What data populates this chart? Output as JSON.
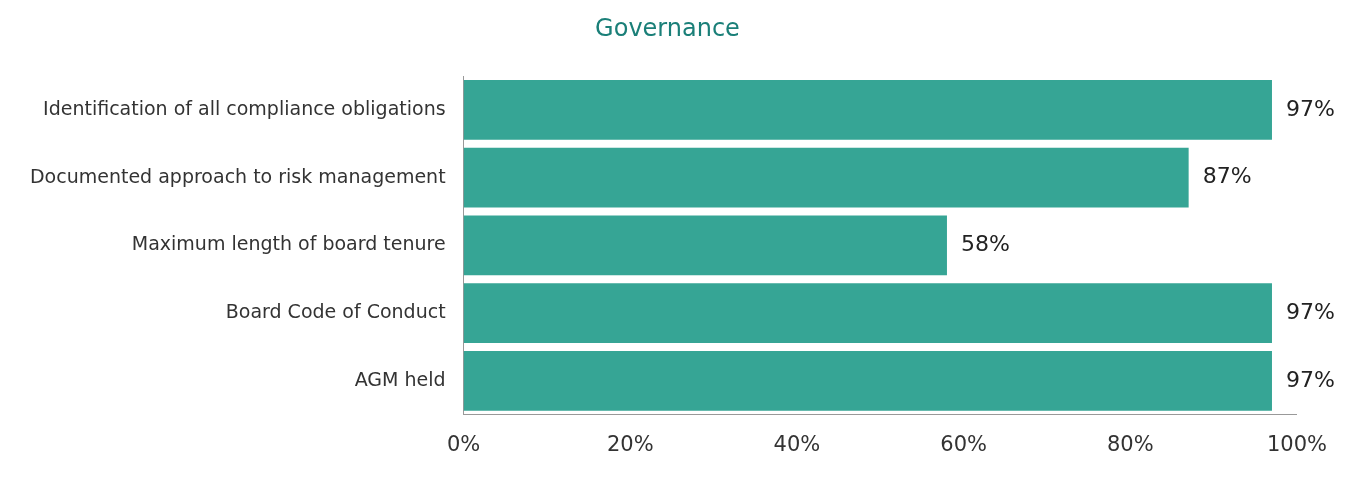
{
  "chart_data": {
    "type": "bar",
    "orientation": "horizontal",
    "title": "Governance",
    "categories": [
      "Identification of all compliance obligations",
      "Documented approach to risk management",
      "Maximum length of board tenure",
      "Board Code of Conduct",
      "AGM held"
    ],
    "values": [
      97,
      87,
      58,
      97,
      97
    ],
    "value_labels": [
      "97%",
      "87%",
      "58%",
      "97%",
      "97%"
    ],
    "color": "#36a595",
    "xlim": [
      0,
      100
    ],
    "xticks": [
      {
        "value": 0,
        "label": "0%"
      },
      {
        "value": 20,
        "label": "20%"
      },
      {
        "value": 40,
        "label": "40%"
      },
      {
        "value": 60,
        "label": "60%"
      },
      {
        "value": 80,
        "label": "80%"
      },
      {
        "value": 100,
        "label": "100%"
      }
    ]
  }
}
